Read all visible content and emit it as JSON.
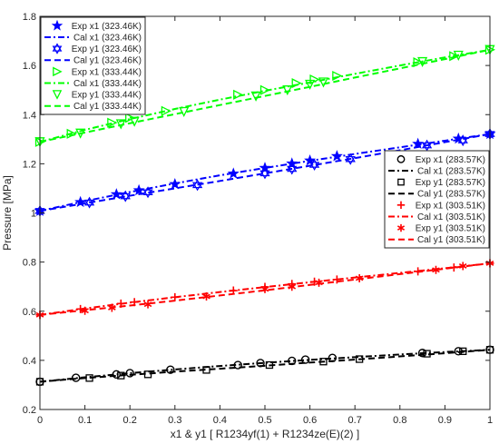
{
  "chart_data": {
    "type": "scatter",
    "xlabel": "x1 & y1 [ R1234yf(1) + R1234ze(E)(2) ]",
    "ylabel": "Pressure [MPa]",
    "xlim": [
      0,
      1
    ],
    "ylim": [
      0.2,
      1.8
    ],
    "xticks": [
      "0",
      "0.1",
      "0.2",
      "0.3",
      "0.4",
      "0.5",
      "0.6",
      "0.7",
      "0.8",
      "0.9",
      "1"
    ],
    "yticks": [
      "0.2",
      "0.4",
      "0.6",
      "0.8",
      "1",
      "1.2",
      "1.4",
      "1.6",
      "1.8"
    ],
    "grid": false,
    "legends": [
      {
        "placement": "top-left",
        "entries": [
          {
            "label": "Exp x1 (323.46K)",
            "color": "#0000ff",
            "marker": "star",
            "style": "marker"
          },
          {
            "label": "Cal x1 (323.46K)",
            "color": "#0000ff",
            "style": "dashdot"
          },
          {
            "label": "Exp y1 (323.46K)",
            "color": "#0000ff",
            "marker": "hexagram",
            "style": "marker"
          },
          {
            "label": "Cal y1 (323.46K)",
            "color": "#0000ff",
            "style": "dash"
          },
          {
            "label": "Exp x1 (333.44K)",
            "color": "#00ff00",
            "marker": "triangle-right",
            "style": "marker"
          },
          {
            "label": "Cal x1 (333.44K)",
            "color": "#00ff00",
            "style": "dashdot"
          },
          {
            "label": "Exp y1 (333.44K)",
            "color": "#00ff00",
            "marker": "triangle-down",
            "style": "marker"
          },
          {
            "label": "Cal y1 (333.44K)",
            "color": "#00ff00",
            "style": "dash"
          }
        ]
      },
      {
        "placement": "right",
        "entries": [
          {
            "label": "Exp x1 (283.57K)",
            "color": "#000000",
            "marker": "circle",
            "style": "marker"
          },
          {
            "label": "Cal x1 (283.57K)",
            "color": "#000000",
            "style": "dashdot"
          },
          {
            "label": "Exp y1 (283.57K)",
            "color": "#000000",
            "marker": "square",
            "style": "marker"
          },
          {
            "label": "Cal y1 (283.57K)",
            "color": "#000000",
            "style": "dash"
          },
          {
            "label": "Exp x1 (303.51K)",
            "color": "#ff0000",
            "marker": "plus",
            "style": "marker"
          },
          {
            "label": "Cal x1 (303.51K)",
            "color": "#ff0000",
            "style": "dashdot"
          },
          {
            "label": "Exp y1 (303.51K)",
            "color": "#ff0000",
            "marker": "asterisk",
            "style": "marker"
          },
          {
            "label": "Cal y1 (303.51K)",
            "color": "#ff0000",
            "style": "dash"
          }
        ]
      }
    ],
    "series": [
      {
        "name": "Exp x1 (283.57K)",
        "kind": "scatter",
        "marker": "circle",
        "color": "#000000",
        "x": [
          0,
          0.08,
          0.17,
          0.2,
          0.29,
          0.44,
          0.49,
          0.56,
          0.59,
          0.65,
          0.85,
          0.93,
          1
        ],
        "y": [
          0.313,
          0.329,
          0.343,
          0.348,
          0.362,
          0.381,
          0.389,
          0.398,
          0.403,
          0.41,
          0.43,
          0.437,
          0.443
        ]
      },
      {
        "name": "Cal x1 (283.57K)",
        "kind": "line",
        "dash": "dashdot",
        "color": "#000000",
        "x": [
          0,
          0.1,
          0.2,
          0.3,
          0.4,
          0.5,
          0.6,
          0.7,
          0.8,
          0.9,
          1
        ],
        "y": [
          0.313,
          0.331,
          0.348,
          0.363,
          0.377,
          0.39,
          0.402,
          0.413,
          0.424,
          0.434,
          0.443
        ]
      },
      {
        "name": "Exp y1 (283.57K)",
        "kind": "scatter",
        "marker": "square",
        "color": "#000000",
        "x": [
          0,
          0.11,
          0.18,
          0.24,
          0.37,
          0.51,
          0.63,
          0.71,
          0.86,
          0.94,
          1
        ],
        "y": [
          0.313,
          0.328,
          0.338,
          0.343,
          0.361,
          0.381,
          0.395,
          0.405,
          0.427,
          0.437,
          0.443
        ]
      },
      {
        "name": "Cal y1 (283.57K)",
        "kind": "line",
        "dash": "dash",
        "color": "#000000",
        "x": [
          0,
          0.1,
          0.2,
          0.3,
          0.4,
          0.5,
          0.6,
          0.7,
          0.8,
          0.9,
          1
        ],
        "y": [
          0.313,
          0.328,
          0.341,
          0.354,
          0.366,
          0.378,
          0.391,
          0.403,
          0.416,
          0.429,
          0.443
        ]
      },
      {
        "name": "Exp x1 (303.51K)",
        "kind": "scatter",
        "marker": "plus",
        "color": "#ff0000",
        "x": [
          0,
          0.09,
          0.18,
          0.21,
          0.3,
          0.43,
          0.5,
          0.56,
          0.61,
          0.66,
          0.84,
          0.92,
          1
        ],
        "y": [
          0.585,
          0.609,
          0.631,
          0.637,
          0.657,
          0.684,
          0.699,
          0.711,
          0.72,
          0.729,
          0.762,
          0.778,
          0.795
        ]
      },
      {
        "name": "Cal x1 (303.51K)",
        "kind": "line",
        "dash": "dashdot",
        "color": "#ff0000",
        "x": [
          0,
          0.1,
          0.2,
          0.3,
          0.4,
          0.5,
          0.6,
          0.7,
          0.8,
          0.9,
          1
        ],
        "y": [
          0.585,
          0.611,
          0.635,
          0.657,
          0.678,
          0.698,
          0.718,
          0.737,
          0.756,
          0.775,
          0.795
        ]
      },
      {
        "name": "Exp y1 (303.51K)",
        "kind": "scatter",
        "marker": "asterisk",
        "color": "#ff0000",
        "x": [
          0,
          0.1,
          0.16,
          0.24,
          0.37,
          0.5,
          0.56,
          0.62,
          0.71,
          0.88,
          0.94,
          1
        ],
        "y": [
          0.585,
          0.602,
          0.614,
          0.628,
          0.66,
          0.69,
          0.7,
          0.716,
          0.734,
          0.768,
          0.784,
          0.795
        ]
      },
      {
        "name": "Cal y1 (303.51K)",
        "kind": "line",
        "dash": "dash",
        "color": "#ff0000",
        "x": [
          0,
          0.1,
          0.2,
          0.3,
          0.4,
          0.5,
          0.6,
          0.7,
          0.8,
          0.9,
          1
        ],
        "y": [
          0.585,
          0.604,
          0.623,
          0.643,
          0.664,
          0.685,
          0.707,
          0.729,
          0.751,
          0.773,
          0.795
        ]
      },
      {
        "name": "Exp x1 (323.46K)",
        "kind": "scatter",
        "marker": "star",
        "color": "#0000ff",
        "x": [
          0,
          0.09,
          0.17,
          0.22,
          0.3,
          0.43,
          0.5,
          0.56,
          0.6,
          0.66,
          0.84,
          0.93,
          1
        ],
        "y": [
          1.008,
          1.044,
          1.076,
          1.092,
          1.117,
          1.16,
          1.183,
          1.201,
          1.213,
          1.231,
          1.281,
          1.302,
          1.321
        ]
      },
      {
        "name": "Cal x1 (323.46K)",
        "kind": "line",
        "dash": "dashdot",
        "color": "#0000ff",
        "x": [
          0,
          0.1,
          0.2,
          0.3,
          0.4,
          0.5,
          0.6,
          0.7,
          0.8,
          0.9,
          1
        ],
        "y": [
          1.008,
          1.048,
          1.085,
          1.12,
          1.153,
          1.183,
          1.212,
          1.24,
          1.267,
          1.294,
          1.321
        ]
      },
      {
        "name": "Exp y1 (323.46K)",
        "kind": "scatter",
        "marker": "hexagram",
        "color": "#0000ff",
        "x": [
          0,
          0.11,
          0.19,
          0.24,
          0.35,
          0.5,
          0.56,
          0.61,
          0.69,
          0.86,
          0.94,
          1
        ],
        "y": [
          1.008,
          1.042,
          1.068,
          1.084,
          1.113,
          1.161,
          1.179,
          1.196,
          1.219,
          1.275,
          1.295,
          1.321
        ]
      },
      {
        "name": "Cal y1 (323.46K)",
        "kind": "line",
        "dash": "dash",
        "color": "#0000ff",
        "x": [
          0,
          0.1,
          0.2,
          0.3,
          0.4,
          0.5,
          0.6,
          0.7,
          0.8,
          0.9,
          1
        ],
        "y": [
          1.008,
          1.039,
          1.07,
          1.1,
          1.13,
          1.161,
          1.192,
          1.223,
          1.255,
          1.288,
          1.321
        ]
      },
      {
        "name": "Exp x1 (333.44K)",
        "kind": "scatter",
        "marker": "triangle-right",
        "color": "#00ff00",
        "x": [
          0,
          0.07,
          0.16,
          0.2,
          0.28,
          0.44,
          0.5,
          0.57,
          0.61,
          0.66,
          0.84,
          0.92,
          1
        ],
        "y": [
          1.289,
          1.322,
          1.367,
          1.387,
          1.415,
          1.481,
          1.5,
          1.528,
          1.543,
          1.558,
          1.613,
          1.638,
          1.664
        ]
      },
      {
        "name": "Cal x1 (333.44K)",
        "kind": "line",
        "dash": "dashdot",
        "color": "#00ff00",
        "x": [
          0,
          0.1,
          0.2,
          0.3,
          0.4,
          0.5,
          0.6,
          0.7,
          0.8,
          0.9,
          1
        ],
        "y": [
          1.289,
          1.338,
          1.382,
          1.423,
          1.461,
          1.497,
          1.531,
          1.566,
          1.6,
          1.633,
          1.664
        ]
      },
      {
        "name": "Exp y1 (333.44K)",
        "kind": "scatter",
        "marker": "triangle-down",
        "color": "#00ff00",
        "x": [
          0,
          0.09,
          0.18,
          0.21,
          0.32,
          0.48,
          0.55,
          0.6,
          0.63,
          0.85,
          0.93,
          1
        ],
        "y": [
          1.289,
          1.324,
          1.362,
          1.372,
          1.412,
          1.475,
          1.5,
          1.523,
          1.532,
          1.615,
          1.641,
          1.664
        ]
      },
      {
        "name": "Cal y1 (333.44K)",
        "kind": "line",
        "dash": "dash",
        "color": "#00ff00",
        "x": [
          0,
          0.1,
          0.2,
          0.3,
          0.4,
          0.5,
          0.6,
          0.7,
          0.8,
          0.9,
          1
        ],
        "y": [
          1.289,
          1.327,
          1.365,
          1.402,
          1.439,
          1.476,
          1.513,
          1.551,
          1.588,
          1.626,
          1.664
        ]
      }
    ]
  }
}
